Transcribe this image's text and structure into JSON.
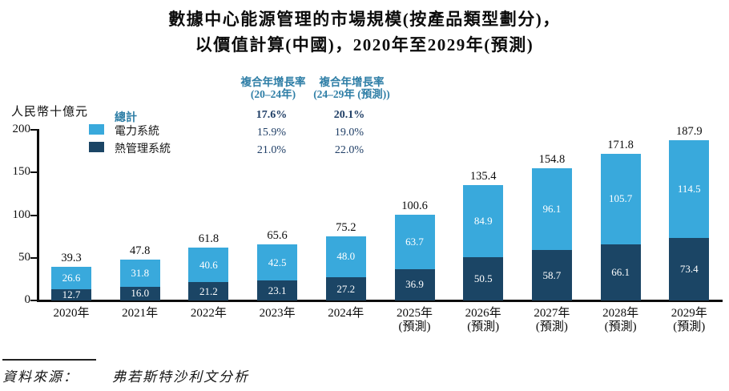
{
  "title": {
    "line1": "數據中心能源管理的市場規模(按產品類型劃分)，",
    "line2": "以價值計算(中國)，2020年至2029年(預測)"
  },
  "y_axis": {
    "unit_label": "人民幣十億元"
  },
  "legend": {
    "total_label": "總計"
  },
  "cagr": {
    "col1": {
      "header_line1": "複合年增長率",
      "header_line2": "(20–24年)",
      "total": "17.6%",
      "power": "15.9%",
      "thermal": "21.0%"
    },
    "col2": {
      "header_line1": "複合年增長率",
      "header_line2": "(24–29年 (預測))",
      "total": "20.1%",
      "power": "19.0%",
      "thermal": "22.0%"
    }
  },
  "colors": {
    "power_blue": "#39A9DC",
    "thermal_navy": "#1B4565",
    "teal_heading": "#2E7EA6",
    "cagr_value_navy": "#1F3E66"
  },
  "chart_data": {
    "type": "bar",
    "stacked": true,
    "title": "數據中心能源管理的市場規模(按產品類型劃分)，以價值計算(中國)，2020年至2029年(預測)",
    "ylabel": "人民幣十億元",
    "ylim": [
      0,
      200
    ],
    "yticks": [
      0,
      50,
      100,
      150,
      200
    ],
    "grid": false,
    "legend_position": "top-left",
    "categories": [
      "2020年",
      "2021年",
      "2022年",
      "2023年",
      "2024年",
      "2025年",
      "2026年",
      "2027年",
      "2028年",
      "2029年"
    ],
    "forecast_from_index": 5,
    "forecast_suffix": "(預測)",
    "series": [
      {
        "name": "電力系統",
        "color": "#39A9DC",
        "cagr_20_24": "15.9%",
        "cagr_24_29": "19.0%",
        "values": [
          26.6,
          31.8,
          40.6,
          42.5,
          48.0,
          63.7,
          84.9,
          96.1,
          105.7,
          114.5
        ]
      },
      {
        "name": "熱管理系統",
        "color": "#1B4565",
        "cagr_20_24": "21.0%",
        "cagr_24_29": "22.0%",
        "values": [
          12.7,
          16.0,
          21.2,
          23.1,
          27.2,
          36.9,
          50.5,
          58.7,
          66.1,
          73.4
        ]
      }
    ],
    "totals": [
      39.3,
      47.8,
      61.8,
      65.6,
      75.2,
      100.6,
      135.4,
      154.8,
      171.8,
      187.9
    ],
    "total_cagr_20_24": "17.6%",
    "total_cagr_24_29": "20.1%"
  },
  "source": {
    "label": "資料來源：",
    "text": "弗若斯特沙利文分析"
  }
}
